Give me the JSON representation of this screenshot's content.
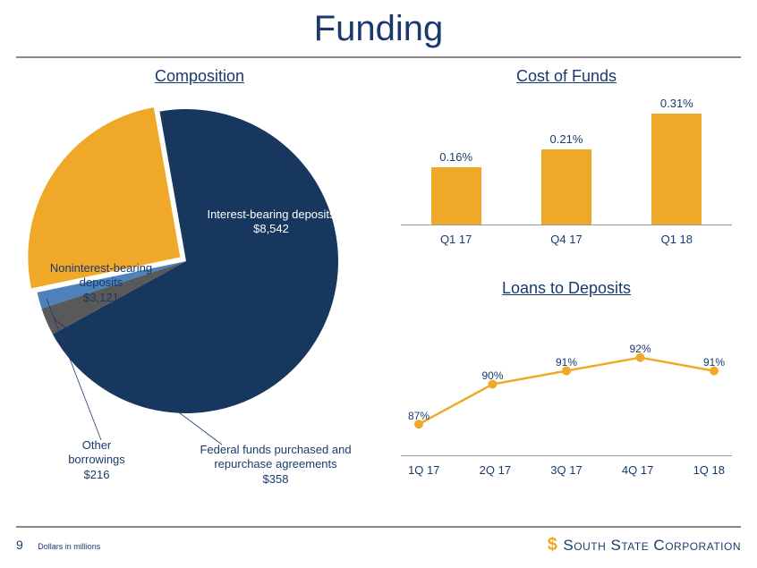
{
  "page": {
    "title": "Funding",
    "number": "9",
    "footnote": "Dollars in millions",
    "brand": "South State Corporation",
    "brand_logo_glyph": "$",
    "brand_logo_color": "#f0a828",
    "text_color": "#1a3a6e",
    "rule_color": "#888888",
    "background_color": "#ffffff"
  },
  "composition": {
    "title": "Composition",
    "type": "pie",
    "slices": [
      {
        "label": "Interest-bearing deposits",
        "value": 8542,
        "display": "Interest-bearing deposits\n$8,542",
        "color": "#17375e"
      },
      {
        "label": "Federal funds purchased and repurchase agreements",
        "value": 358,
        "display": "Federal funds purchased and\nrepurchase agreements\n$358",
        "color": "#595959"
      },
      {
        "label": "Other borrowings",
        "value": 216,
        "display": "Other\nborrowings\n$216",
        "color": "#4f81bd"
      },
      {
        "label": "Noninterest-bearing deposits",
        "value": 3121,
        "display": "Noninterest-bearing\ndeposits\n$3,121",
        "color": "#f0a828"
      }
    ],
    "pull_slice_index": 3,
    "pull_distance": 8
  },
  "cost_of_funds": {
    "title": "Cost of Funds",
    "type": "bar",
    "categories": [
      "Q1 17",
      "Q4 17",
      "Q1 18"
    ],
    "values": [
      0.16,
      0.21,
      0.31
    ],
    "value_labels": [
      "0.16%",
      "0.21%",
      "0.31%"
    ],
    "bar_color": "#f0a828",
    "axis_color": "#999999",
    "ylim": [
      0,
      0.35
    ],
    "label_fontsize": 13
  },
  "loans_to_deposits": {
    "title": "Loans to Deposits",
    "type": "line",
    "categories": [
      "1Q 17",
      "2Q 17",
      "3Q 17",
      "4Q 17",
      "1Q 18"
    ],
    "values": [
      87,
      90,
      91,
      92,
      91
    ],
    "value_labels": [
      "87%",
      "90%",
      "91%",
      "92%",
      "91%"
    ],
    "line_color": "#f0a828",
    "marker_color": "#f0a828",
    "marker_size": 5,
    "line_width": 2.5,
    "axis_color": "#999999",
    "ylim": [
      85,
      94
    ],
    "label_fontsize": 12
  }
}
